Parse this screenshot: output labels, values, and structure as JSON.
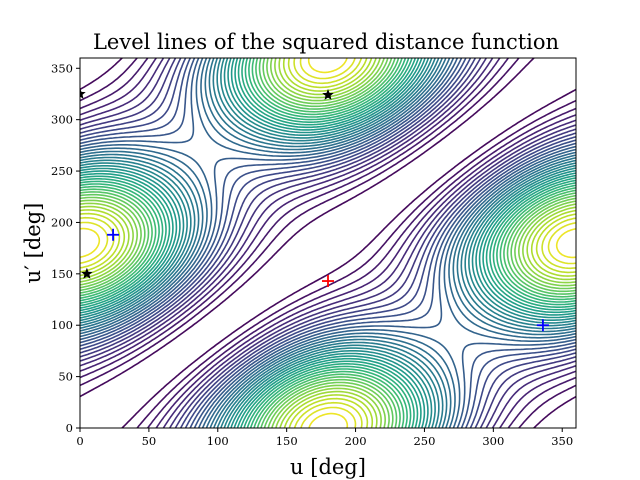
{
  "chart_data": {
    "type": "contour",
    "title": "Level lines of the squared distance function",
    "xlabel": "u [deg]",
    "ylabel": "u′ [deg]",
    "xlim": [
      0,
      360
    ],
    "ylim": [
      0,
      360
    ],
    "xticks": [
      0,
      50,
      100,
      150,
      200,
      250,
      300,
      350
    ],
    "yticks": [
      0,
      50,
      100,
      150,
      200,
      250,
      300,
      350
    ],
    "xtick_labels": [
      "0",
      "50",
      "100",
      "150",
      "200",
      "250",
      "300",
      "350"
    ],
    "ytick_labels": [
      "0",
      "50",
      "100",
      "150",
      "200",
      "250",
      "300",
      "350"
    ],
    "colormap": "viridis",
    "contour_levels": 40,
    "grid": false,
    "markers": {
      "maxima": {
        "symbol": "plus",
        "color": "#ff0000",
        "points": [
          [
            180,
            143
          ]
        ]
      },
      "minima": {
        "symbol": "plus",
        "color": "#0000ff",
        "points": [
          [
            24,
            188
          ],
          [
            336,
            100
          ]
        ]
      },
      "saddles": {
        "symbol": "star",
        "color": "#000000",
        "points": [
          [
            0,
            325
          ],
          [
            5,
            150
          ],
          [
            180,
            324
          ]
        ]
      }
    }
  }
}
